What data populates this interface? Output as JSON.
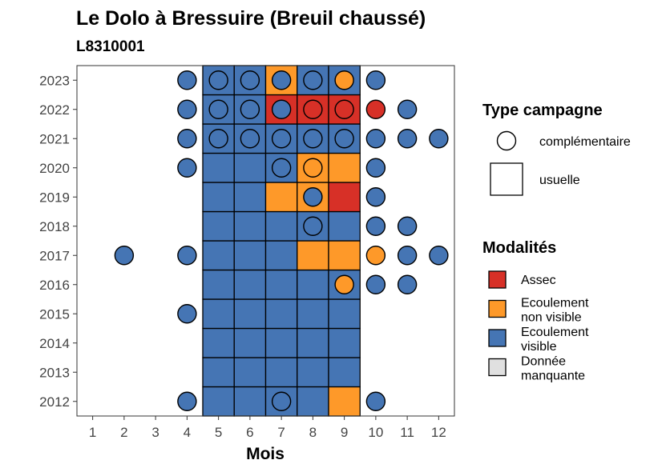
{
  "chart_data": {
    "type": "heatmap",
    "title": "Le Dolo à Bressuire (Breuil chaussé)",
    "subtitle": "L8310001",
    "xlabel": "Mois",
    "ylabel": "",
    "x_ticks": [
      "1",
      "2",
      "3",
      "4",
      "5",
      "6",
      "7",
      "8",
      "9",
      "10",
      "11",
      "12"
    ],
    "y_ticks": [
      "2012",
      "2013",
      "2014",
      "2015",
      "2016",
      "2017",
      "2018",
      "2019",
      "2020",
      "2021",
      "2022",
      "2023"
    ],
    "colors": {
      "Assec": "#d73027",
      "Ecoulement non visible": "#fe9929",
      "Ecoulement visible": "#4575b4",
      "Donnée manquante": "#e0e0e0"
    },
    "cells": [
      {
        "year": 2012,
        "month": 5,
        "modalite": "Ecoulement visible",
        "type": "usuelle"
      },
      {
        "year": 2012,
        "month": 6,
        "modalite": "Ecoulement visible",
        "type": "usuelle"
      },
      {
        "year": 2012,
        "month": 7,
        "modalite": "Ecoulement visible",
        "type": "usuelle"
      },
      {
        "year": 2012,
        "month": 8,
        "modalite": "Ecoulement visible",
        "type": "usuelle"
      },
      {
        "year": 2012,
        "month": 9,
        "modalite": "Ecoulement non visible",
        "type": "usuelle"
      },
      {
        "year": 2013,
        "month": 5,
        "modalite": "Ecoulement visible",
        "type": "usuelle"
      },
      {
        "year": 2013,
        "month": 6,
        "modalite": "Ecoulement visible",
        "type": "usuelle"
      },
      {
        "year": 2013,
        "month": 7,
        "modalite": "Ecoulement visible",
        "type": "usuelle"
      },
      {
        "year": 2013,
        "month": 8,
        "modalite": "Ecoulement visible",
        "type": "usuelle"
      },
      {
        "year": 2013,
        "month": 9,
        "modalite": "Ecoulement visible",
        "type": "usuelle"
      },
      {
        "year": 2014,
        "month": 5,
        "modalite": "Ecoulement visible",
        "type": "usuelle"
      },
      {
        "year": 2014,
        "month": 6,
        "modalite": "Ecoulement visible",
        "type": "usuelle"
      },
      {
        "year": 2014,
        "month": 7,
        "modalite": "Ecoulement visible",
        "type": "usuelle"
      },
      {
        "year": 2014,
        "month": 8,
        "modalite": "Ecoulement visible",
        "type": "usuelle"
      },
      {
        "year": 2014,
        "month": 9,
        "modalite": "Ecoulement visible",
        "type": "usuelle"
      },
      {
        "year": 2015,
        "month": 5,
        "modalite": "Ecoulement visible",
        "type": "usuelle"
      },
      {
        "year": 2015,
        "month": 6,
        "modalite": "Ecoulement visible",
        "type": "usuelle"
      },
      {
        "year": 2015,
        "month": 7,
        "modalite": "Ecoulement visible",
        "type": "usuelle"
      },
      {
        "year": 2015,
        "month": 8,
        "modalite": "Ecoulement visible",
        "type": "usuelle"
      },
      {
        "year": 2015,
        "month": 9,
        "modalite": "Ecoulement visible",
        "type": "usuelle"
      },
      {
        "year": 2016,
        "month": 5,
        "modalite": "Ecoulement visible",
        "type": "usuelle"
      },
      {
        "year": 2016,
        "month": 6,
        "modalite": "Ecoulement visible",
        "type": "usuelle"
      },
      {
        "year": 2016,
        "month": 7,
        "modalite": "Ecoulement visible",
        "type": "usuelle"
      },
      {
        "year": 2016,
        "month": 8,
        "modalite": "Ecoulement visible",
        "type": "usuelle"
      },
      {
        "year": 2016,
        "month": 9,
        "modalite": "Ecoulement visible",
        "type": "usuelle"
      },
      {
        "year": 2017,
        "month": 5,
        "modalite": "Ecoulement visible",
        "type": "usuelle"
      },
      {
        "year": 2017,
        "month": 6,
        "modalite": "Ecoulement visible",
        "type": "usuelle"
      },
      {
        "year": 2017,
        "month": 7,
        "modalite": "Ecoulement visible",
        "type": "usuelle"
      },
      {
        "year": 2017,
        "month": 8,
        "modalite": "Ecoulement non visible",
        "type": "usuelle"
      },
      {
        "year": 2017,
        "month": 9,
        "modalite": "Ecoulement non visible",
        "type": "usuelle"
      },
      {
        "year": 2018,
        "month": 5,
        "modalite": "Ecoulement visible",
        "type": "usuelle"
      },
      {
        "year": 2018,
        "month": 6,
        "modalite": "Ecoulement visible",
        "type": "usuelle"
      },
      {
        "year": 2018,
        "month": 7,
        "modalite": "Ecoulement visible",
        "type": "usuelle"
      },
      {
        "year": 2018,
        "month": 8,
        "modalite": "Ecoulement visible",
        "type": "usuelle"
      },
      {
        "year": 2018,
        "month": 9,
        "modalite": "Ecoulement visible",
        "type": "usuelle"
      },
      {
        "year": 2019,
        "month": 5,
        "modalite": "Ecoulement visible",
        "type": "usuelle"
      },
      {
        "year": 2019,
        "month": 6,
        "modalite": "Ecoulement visible",
        "type": "usuelle"
      },
      {
        "year": 2019,
        "month": 7,
        "modalite": "Ecoulement non visible",
        "type": "usuelle"
      },
      {
        "year": 2019,
        "month": 8,
        "modalite": "Ecoulement non visible",
        "type": "usuelle"
      },
      {
        "year": 2019,
        "month": 9,
        "modalite": "Assec",
        "type": "usuelle"
      },
      {
        "year": 2020,
        "month": 5,
        "modalite": "Ecoulement visible",
        "type": "usuelle"
      },
      {
        "year": 2020,
        "month": 6,
        "modalite": "Ecoulement visible",
        "type": "usuelle"
      },
      {
        "year": 2020,
        "month": 7,
        "modalite": "Ecoulement visible",
        "type": "usuelle"
      },
      {
        "year": 2020,
        "month": 8,
        "modalite": "Ecoulement non visible",
        "type": "usuelle"
      },
      {
        "year": 2020,
        "month": 9,
        "modalite": "Ecoulement non visible",
        "type": "usuelle"
      },
      {
        "year": 2021,
        "month": 5,
        "modalite": "Ecoulement visible",
        "type": "usuelle"
      },
      {
        "year": 2021,
        "month": 6,
        "modalite": "Ecoulement visible",
        "type": "usuelle"
      },
      {
        "year": 2021,
        "month": 7,
        "modalite": "Ecoulement visible",
        "type": "usuelle"
      },
      {
        "year": 2021,
        "month": 8,
        "modalite": "Ecoulement visible",
        "type": "usuelle"
      },
      {
        "year": 2021,
        "month": 9,
        "modalite": "Ecoulement visible",
        "type": "usuelle"
      },
      {
        "year": 2022,
        "month": 5,
        "modalite": "Ecoulement visible",
        "type": "usuelle"
      },
      {
        "year": 2022,
        "month": 6,
        "modalite": "Ecoulement visible",
        "type": "usuelle"
      },
      {
        "year": 2022,
        "month": 7,
        "modalite": "Assec",
        "type": "usuelle"
      },
      {
        "year": 2022,
        "month": 8,
        "modalite": "Assec",
        "type": "usuelle"
      },
      {
        "year": 2022,
        "month": 9,
        "modalite": "Assec",
        "type": "usuelle"
      },
      {
        "year": 2023,
        "month": 5,
        "modalite": "Ecoulement visible",
        "type": "usuelle"
      },
      {
        "year": 2023,
        "month": 6,
        "modalite": "Ecoulement visible",
        "type": "usuelle"
      },
      {
        "year": 2023,
        "month": 7,
        "modalite": "Ecoulement non visible",
        "type": "usuelle"
      },
      {
        "year": 2023,
        "month": 8,
        "modalite": "Ecoulement visible",
        "type": "usuelle"
      },
      {
        "year": 2023,
        "month": 9,
        "modalite": "Ecoulement visible",
        "type": "usuelle"
      }
    ],
    "points": [
      {
        "year": 2012,
        "month": 4,
        "modalite": "Ecoulement visible",
        "type": "complémentaire"
      },
      {
        "year": 2012,
        "month": 7,
        "modalite": "Ecoulement visible",
        "type": "complémentaire"
      },
      {
        "year": 2012,
        "month": 10,
        "modalite": "Ecoulement visible",
        "type": "complémentaire"
      },
      {
        "year": 2015,
        "month": 4,
        "modalite": "Ecoulement visible",
        "type": "complémentaire"
      },
      {
        "year": 2016,
        "month": 9,
        "modalite": "Ecoulement non visible",
        "type": "complémentaire"
      },
      {
        "year": 2016,
        "month": 10,
        "modalite": "Ecoulement visible",
        "type": "complémentaire"
      },
      {
        "year": 2016,
        "month": 11,
        "modalite": "Ecoulement visible",
        "type": "complémentaire"
      },
      {
        "year": 2017,
        "month": 2,
        "modalite": "Ecoulement visible",
        "type": "complémentaire"
      },
      {
        "year": 2017,
        "month": 4,
        "modalite": "Ecoulement visible",
        "type": "complémentaire"
      },
      {
        "year": 2017,
        "month": 10,
        "modalite": "Ecoulement non visible",
        "type": "complémentaire"
      },
      {
        "year": 2017,
        "month": 11,
        "modalite": "Ecoulement visible",
        "type": "complémentaire"
      },
      {
        "year": 2017,
        "month": 12,
        "modalite": "Ecoulement visible",
        "type": "complémentaire"
      },
      {
        "year": 2018,
        "month": 8,
        "modalite": "Ecoulement visible",
        "type": "complémentaire"
      },
      {
        "year": 2018,
        "month": 10,
        "modalite": "Ecoulement visible",
        "type": "complémentaire"
      },
      {
        "year": 2018,
        "month": 11,
        "modalite": "Ecoulement visible",
        "type": "complémentaire"
      },
      {
        "year": 2019,
        "month": 8,
        "modalite": "Ecoulement visible",
        "type": "complémentaire"
      },
      {
        "year": 2019,
        "month": 10,
        "modalite": "Ecoulement visible",
        "type": "complémentaire"
      },
      {
        "year": 2020,
        "month": 4,
        "modalite": "Ecoulement visible",
        "type": "complémentaire"
      },
      {
        "year": 2020,
        "month": 7,
        "modalite": "Ecoulement visible",
        "type": "complémentaire"
      },
      {
        "year": 2020,
        "month": 8,
        "modalite": "Ecoulement non visible",
        "type": "complémentaire"
      },
      {
        "year": 2020,
        "month": 10,
        "modalite": "Ecoulement visible",
        "type": "complémentaire"
      },
      {
        "year": 2021,
        "month": 4,
        "modalite": "Ecoulement visible",
        "type": "complémentaire"
      },
      {
        "year": 2021,
        "month": 5,
        "modalite": "Ecoulement visible",
        "type": "complémentaire"
      },
      {
        "year": 2021,
        "month": 6,
        "modalite": "Ecoulement visible",
        "type": "complémentaire"
      },
      {
        "year": 2021,
        "month": 7,
        "modalite": "Ecoulement visible",
        "type": "complémentaire"
      },
      {
        "year": 2021,
        "month": 8,
        "modalite": "Ecoulement visible",
        "type": "complémentaire"
      },
      {
        "year": 2021,
        "month": 9,
        "modalite": "Ecoulement visible",
        "type": "complémentaire"
      },
      {
        "year": 2021,
        "month": 10,
        "modalite": "Ecoulement visible",
        "type": "complémentaire"
      },
      {
        "year": 2021,
        "month": 11,
        "modalite": "Ecoulement visible",
        "type": "complémentaire"
      },
      {
        "year": 2021,
        "month": 12,
        "modalite": "Ecoulement visible",
        "type": "complémentaire"
      },
      {
        "year": 2022,
        "month": 4,
        "modalite": "Ecoulement visible",
        "type": "complémentaire"
      },
      {
        "year": 2022,
        "month": 5,
        "modalite": "Ecoulement visible",
        "type": "complémentaire"
      },
      {
        "year": 2022,
        "month": 6,
        "modalite": "Ecoulement visible",
        "type": "complémentaire"
      },
      {
        "year": 2022,
        "month": 7,
        "modalite": "Ecoulement visible",
        "type": "complémentaire"
      },
      {
        "year": 2022,
        "month": 8,
        "modalite": "Assec",
        "type": "complémentaire"
      },
      {
        "year": 2022,
        "month": 9,
        "modalite": "Assec",
        "type": "complémentaire"
      },
      {
        "year": 2022,
        "month": 10,
        "modalite": "Assec",
        "type": "complémentaire"
      },
      {
        "year": 2022,
        "month": 11,
        "modalite": "Ecoulement visible",
        "type": "complémentaire"
      },
      {
        "year": 2023,
        "month": 4,
        "modalite": "Ecoulement visible",
        "type": "complémentaire"
      },
      {
        "year": 2023,
        "month": 5,
        "modalite": "Ecoulement visible",
        "type": "complémentaire"
      },
      {
        "year": 2023,
        "month": 6,
        "modalite": "Ecoulement visible",
        "type": "complémentaire"
      },
      {
        "year": 2023,
        "month": 7,
        "modalite": "Ecoulement visible",
        "type": "complémentaire"
      },
      {
        "year": 2023,
        "month": 8,
        "modalite": "Ecoulement visible",
        "type": "complémentaire"
      },
      {
        "year": 2023,
        "month": 9,
        "modalite": "Ecoulement non visible",
        "type": "complémentaire"
      },
      {
        "year": 2023,
        "month": 10,
        "modalite": "Ecoulement visible",
        "type": "complémentaire"
      }
    ],
    "legend": {
      "placement": "right",
      "type_title": "Type campagne",
      "type_items": [
        {
          "label": "complémentaire",
          "shape": "circle"
        },
        {
          "label": "usuelle",
          "shape": "square"
        }
      ],
      "modalites_title": "Modalités",
      "modalites_items": [
        {
          "lines": [
            "Assec"
          ],
          "key": "Assec"
        },
        {
          "lines": [
            "Ecoulement",
            "non visible"
          ],
          "key": "Ecoulement non visible"
        },
        {
          "lines": [
            "Ecoulement",
            "visible"
          ],
          "key": "Ecoulement visible"
        },
        {
          "lines": [
            "Donnée",
            "manquante"
          ],
          "key": "Donnée manquante"
        }
      ]
    }
  }
}
